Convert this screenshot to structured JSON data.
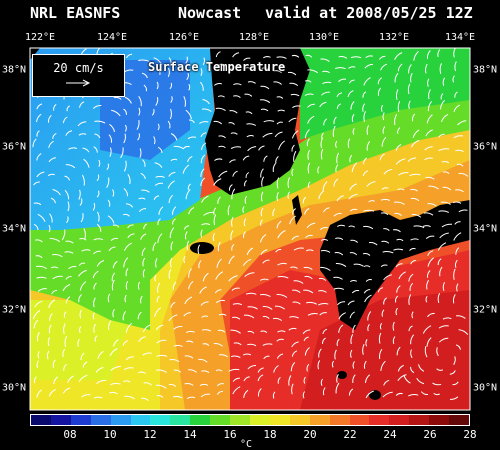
{
  "header": {
    "title_left": "NRL EASNFS",
    "title_mid": "Nowcast",
    "title_right": "valid at 2008/05/25 12Z"
  },
  "map": {
    "field_title": "Surface Temperature",
    "lon_labels": [
      "122°E",
      "124°E",
      "126°E",
      "128°E",
      "130°E",
      "132°E",
      "134°E"
    ],
    "lat_labels": [
      "38°N",
      "36°N",
      "34°N",
      "32°N",
      "30°N"
    ],
    "land_color": "#000000",
    "current_arrow_color": "#ffffff"
  },
  "legend": {
    "reference_label": "20 cm/s",
    "arrow_icon": "right-arrow-icon"
  },
  "colorbar": {
    "ticks": [
      "08",
      "10",
      "12",
      "14",
      "16",
      "18",
      "20",
      "22",
      "24",
      "26",
      "28"
    ],
    "unit": "°C",
    "colors": [
      "#0a0a6e",
      "#1414a0",
      "#1e3cd2",
      "#2a6ee6",
      "#2a9bf0",
      "#2ac8f0",
      "#28e6dc",
      "#28e6a0",
      "#28d23c",
      "#64dc28",
      "#a0e628",
      "#dcf028",
      "#f0e628",
      "#f5c828",
      "#f5a028",
      "#f57828",
      "#f05028",
      "#e62d28",
      "#d21e1e",
      "#b41414",
      "#8c0a0a",
      "#640808"
    ]
  }
}
